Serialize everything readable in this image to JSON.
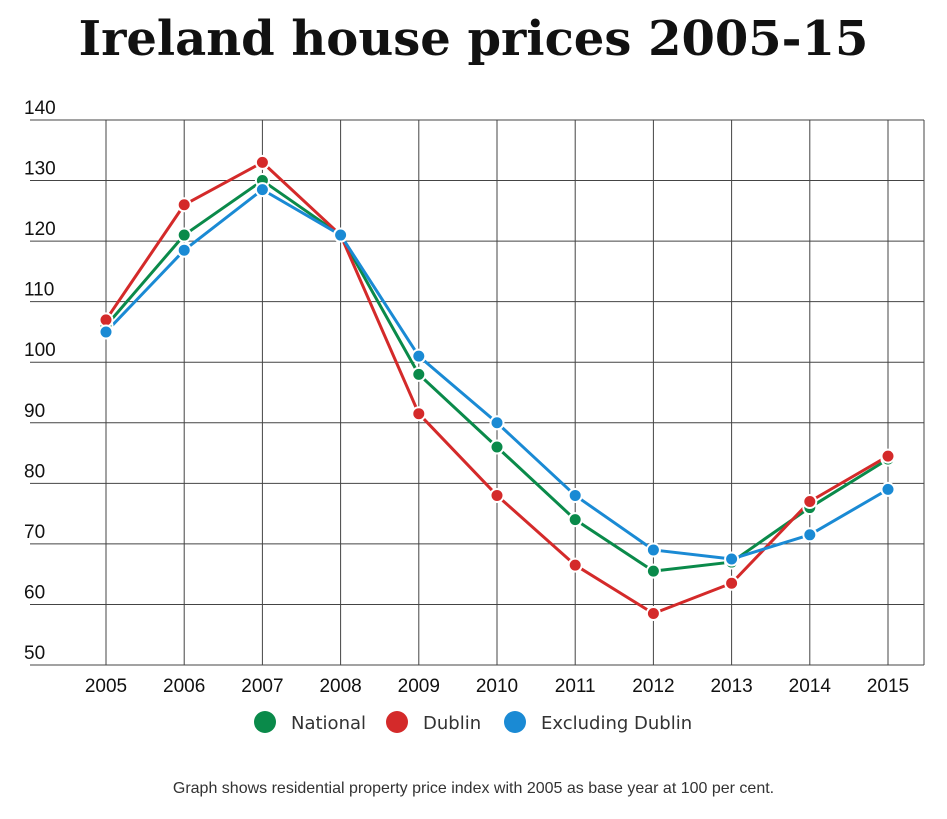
{
  "chart_data": {
    "type": "line",
    "title": "Ireland house prices 2005-15",
    "footnote": "Graph shows residential property price index with 2005 as base year at 100 per cent.",
    "categories": [
      "2005",
      "2006",
      "2007",
      "2008",
      "2009",
      "2010",
      "2011",
      "2012",
      "2013",
      "2014",
      "2015"
    ],
    "ylim": [
      50,
      140
    ],
    "yticks": [
      50,
      60,
      70,
      80,
      90,
      100,
      110,
      120,
      130,
      140
    ],
    "grid": true,
    "legend": "bottom",
    "series": [
      {
        "name": "National",
        "color": "#0a8a4a",
        "values": [
          106,
          121,
          130,
          121,
          98,
          86,
          74,
          65.5,
          67,
          76,
          84
        ]
      },
      {
        "name": "Dublin",
        "color": "#d42a2a",
        "values": [
          107,
          126,
          133,
          121,
          91.5,
          78,
          66.5,
          58.5,
          63.5,
          77,
          84.5
        ]
      },
      {
        "name": "Excluding Dublin",
        "color": "#1a8ad4",
        "values": [
          105,
          118.5,
          128.5,
          121,
          101,
          90,
          78,
          69,
          67.5,
          71.5,
          79
        ]
      }
    ]
  }
}
